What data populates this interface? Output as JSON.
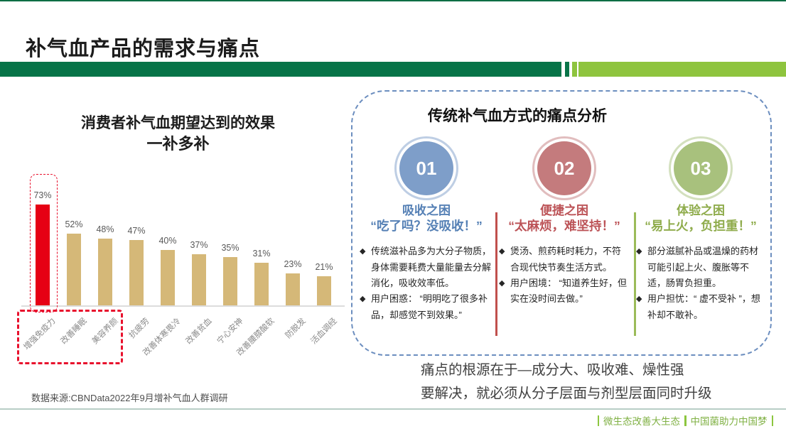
{
  "page_title": "补气血产品的需求与痛点",
  "header_bar": {
    "dark_green": "#077448",
    "light_green": "#8ec43e"
  },
  "chart_data": {
    "type": "bar",
    "title": "消费者补气血期望达到的效果",
    "subtitle": "一补多补",
    "categories": [
      "增强免疫力",
      "改善睡眠",
      "美容养颜",
      "抗疲劳",
      "改善体寒畏冷",
      "改善贫血",
      "宁心安神",
      "改善腰膝酸软",
      "防脱发",
      "活血调经"
    ],
    "values": [
      73,
      52,
      48,
      47,
      40,
      37,
      35,
      31,
      23,
      21
    ],
    "unit": "%",
    "ylim": [
      0,
      80
    ],
    "grid": false,
    "highlight_index": 0,
    "highlight_color": "#e60014",
    "bar_color": "#d5b878",
    "value_label_color": "#595959",
    "highlighted_categories": [
      "增强免疫力",
      "改善睡眠",
      "美容养颜"
    ]
  },
  "chart_source": "数据来源:CBNData2022年9月增补气血人群调研",
  "pain_panel": {
    "title": "传统补气血方式的痛点分析",
    "bullet_char": "◆",
    "divider_colors": [
      "#c0504d",
      "#9bbb59"
    ],
    "items": [
      {
        "number": "01",
        "circle_color": "#7e9ec9",
        "accent": "#5580b5",
        "heading": "吸收之困",
        "quote": "“吃了吗？没吸收！”",
        "bullets": [
          "传统滋补品多为大分子物质，身体需要耗费大量能量去分解消化，吸收效率低。",
          "用户困惑： “明明吃了很多补品，却感觉不到效果。”"
        ]
      },
      {
        "number": "02",
        "circle_color": "#c47b7d",
        "accent": "#bc5357",
        "heading": "便捷之困",
        "quote": "“太麻烦，难坚持！”",
        "bullets": [
          "煲汤、煎药耗时耗力，不符合现代快节奏生活方式。",
          "用户困境： “知道养生好，但实在没时间去做。”"
        ]
      },
      {
        "number": "03",
        "circle_color": "#a8c17d",
        "accent": "#8fac4c",
        "heading": "体验之困",
        "quote": "“易上火，负担重！”",
        "bullets": [
          "部分滋腻补品或温燥的药材可能引起上火、腹胀等不适，肠胃负担重。",
          "用户担忧：“ 虚不受补 ”，想补却不敢补。"
        ]
      }
    ]
  },
  "conclusion": {
    "line1": "痛点的根源在于—成分大、吸收难、燥性强",
    "line2": "要解决，就必须从分子层面与剂型层面同时升级"
  },
  "footer": {
    "slogan1": "微生态改善大生态",
    "slogan2": "中国菌助力中国梦"
  }
}
